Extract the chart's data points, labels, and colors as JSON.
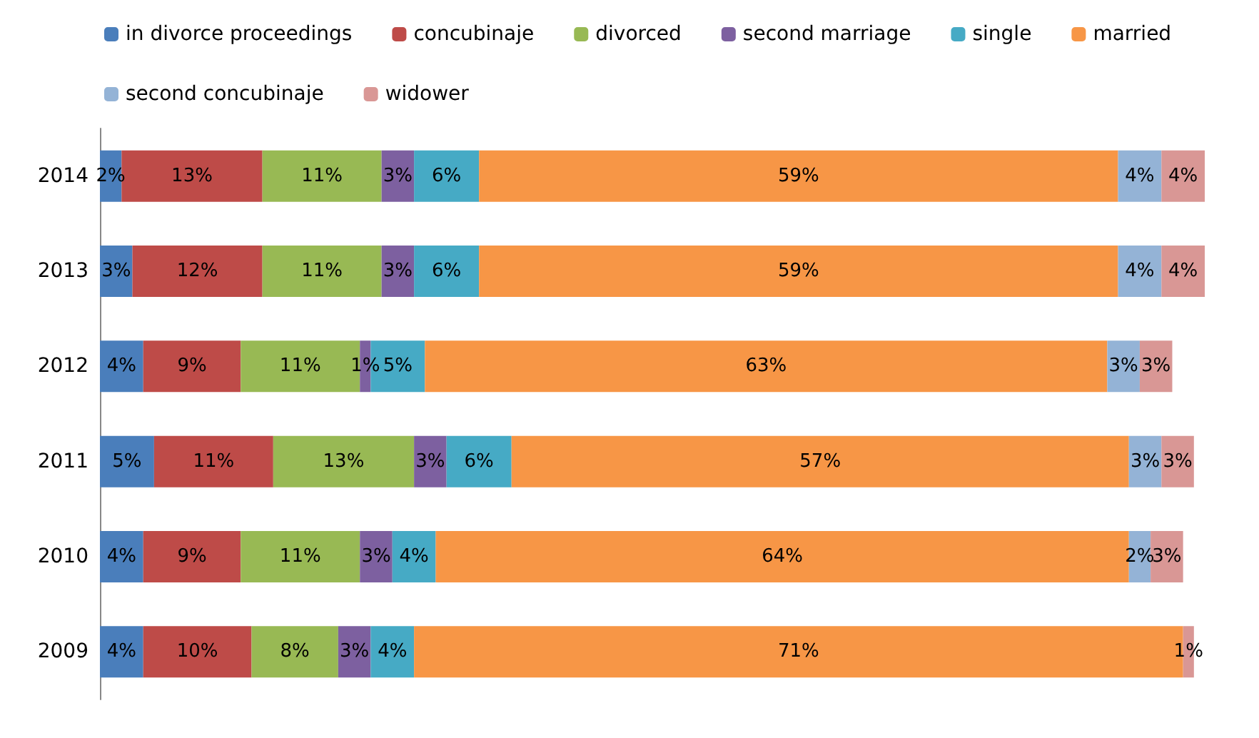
{
  "chart_data": {
    "type": "bar",
    "orientation": "horizontal",
    "stacked": true,
    "legend": "top",
    "categories": [
      "2014",
      "2013",
      "2012",
      "2011",
      "2010",
      "2009"
    ],
    "series": [
      {
        "name": "in divorce proceedings",
        "color": "#4a7ebb",
        "values": [
          2,
          3,
          4,
          5,
          4,
          4
        ],
        "value_labels": [
          "2%",
          "3%",
          "4%",
          "5%",
          "4%",
          "4%"
        ]
      },
      {
        "name": "concubinaje",
        "color": "#be4b48",
        "values": [
          13,
          12,
          9,
          11,
          9,
          10
        ],
        "value_labels": [
          "13%",
          "12%",
          "9%",
          "11%",
          "9%",
          "10%"
        ]
      },
      {
        "name": "divorced",
        "color": "#98b954",
        "values": [
          11,
          11,
          11,
          13,
          11,
          8
        ],
        "value_labels": [
          "11%",
          "11%",
          "11%",
          "13%",
          "11%",
          "8%"
        ]
      },
      {
        "name": "second marriage",
        "color": "#7d60a0",
        "values": [
          3,
          3,
          1,
          3,
          3,
          3
        ],
        "value_labels": [
          "3%",
          "3%",
          "1%",
          "3%",
          "3%",
          "3%"
        ]
      },
      {
        "name": "single",
        "color": "#46aac5",
        "values": [
          6,
          6,
          5,
          6,
          4,
          4
        ],
        "value_labels": [
          "6%",
          "6%",
          "5%",
          "6%",
          "4%",
          "4%"
        ]
      },
      {
        "name": "married",
        "color": "#f79646",
        "values": [
          59,
          59,
          63,
          57,
          64,
          71
        ],
        "value_labels": [
          "59%",
          "59%",
          "63%",
          "57%",
          "64%",
          "71%"
        ]
      },
      {
        "name": "second concubinaje",
        "color": "#94b3d6",
        "values": [
          4,
          4,
          3,
          3,
          2,
          null
        ],
        "value_labels": [
          "4%",
          "4%",
          "3%",
          "3%",
          "2%",
          null
        ]
      },
      {
        "name": "widower",
        "color": "#d99795",
        "values": [
          4,
          4,
          3,
          3,
          3,
          1
        ],
        "value_labels": [
          "4%",
          "4%",
          "3%",
          "3%",
          "3%",
          "1%"
        ]
      }
    ]
  }
}
